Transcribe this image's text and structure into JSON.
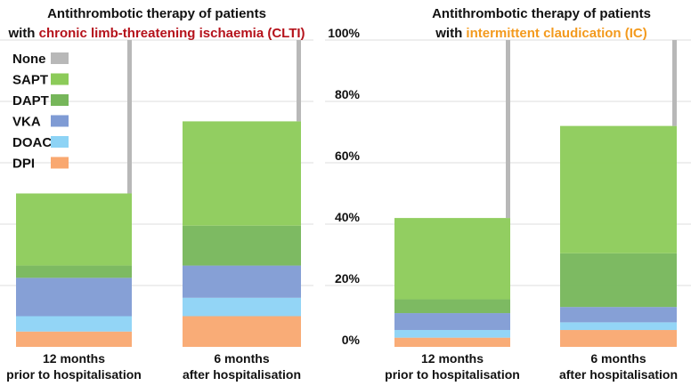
{
  "chart_data": [
    {
      "type": "bar",
      "stacked": true,
      "title_prefix": "Antithrombotic therapy of patients",
      "title_with": "with ",
      "title_highlight": "chronic limb-threatening ischaemia (CLTI)",
      "title_highlight_color": "#b5121b",
      "categories": [
        {
          "line1": "12 months",
          "line2": "prior to hospitalisation"
        },
        {
          "line1": "6 months",
          "line2": "after hospitalisation"
        }
      ],
      "ylim": [
        0,
        100
      ],
      "grid": true,
      "legend_position": "top-left",
      "series": [
        {
          "name": "DPI",
          "color": "#f9a870",
          "values": [
            5,
            10
          ]
        },
        {
          "name": "DOAC",
          "color": "#8dd3f5",
          "values": [
            5,
            6
          ]
        },
        {
          "name": "VKA",
          "color": "#7f9bd4",
          "values": [
            12.5,
            10.5
          ]
        },
        {
          "name": "DAPT",
          "color": "#76b65a",
          "values": [
            4,
            13
          ]
        },
        {
          "name": "SAPT",
          "color": "#8ccb59",
          "values": [
            23.5,
            34
          ]
        },
        {
          "name": "None",
          "color": "#b8b8b8",
          "values": [
            50,
            26.5
          ]
        }
      ]
    },
    {
      "type": "bar",
      "stacked": true,
      "title_prefix": "Antithrombotic therapy of patients",
      "title_with": "with ",
      "title_highlight": "intermittent claudication (IC)",
      "title_highlight_color": "#f39a1e",
      "categories": [
        {
          "line1": "12 months",
          "line2": "prior to hospitalisation"
        },
        {
          "line1": "6 months",
          "line2": "after hospitalisation"
        }
      ],
      "ylim": [
        0,
        100
      ],
      "yticks": [
        "0%",
        "20%",
        "40%",
        "60%",
        "80%",
        "100%"
      ],
      "grid": true,
      "series": [
        {
          "name": "DPI",
          "color": "#f9a870",
          "values": [
            3,
            5.5
          ]
        },
        {
          "name": "DOAC",
          "color": "#8dd3f5",
          "values": [
            2.5,
            2.5
          ]
        },
        {
          "name": "VKA",
          "color": "#7f9bd4",
          "values": [
            5.5,
            5
          ]
        },
        {
          "name": "DAPT",
          "color": "#76b65a",
          "values": [
            4.5,
            17.5
          ]
        },
        {
          "name": "SAPT",
          "color": "#8ccb59",
          "values": [
            26.5,
            41.5
          ]
        },
        {
          "name": "None",
          "color": "#b8b8b8",
          "values": [
            58,
            28
          ]
        }
      ]
    }
  ]
}
